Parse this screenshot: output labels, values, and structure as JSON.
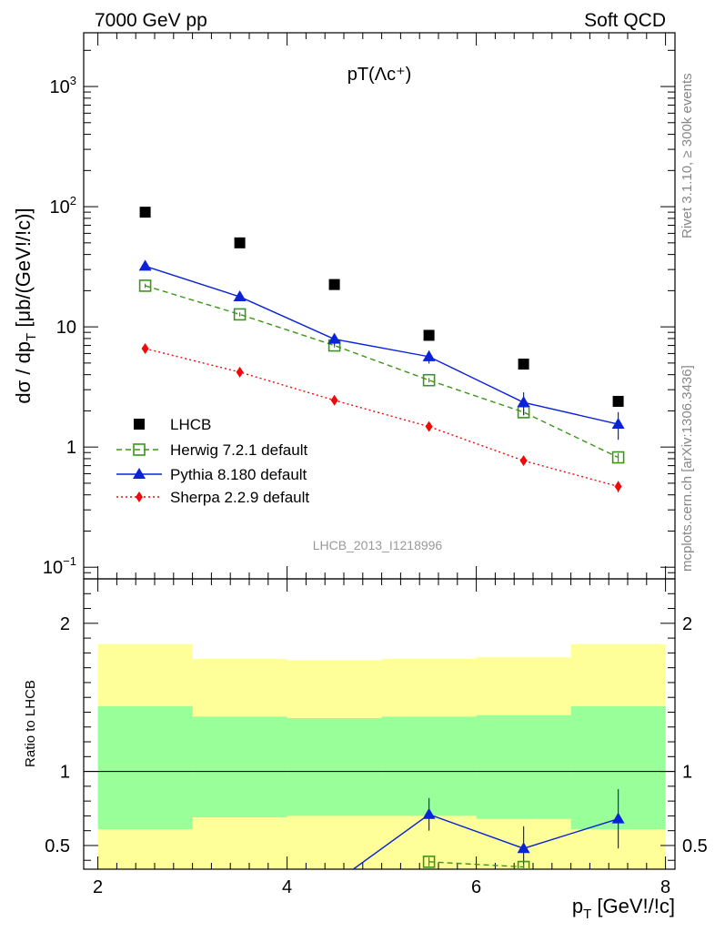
{
  "header": {
    "left": "7000 GeV pp",
    "right": "Soft QCD"
  },
  "side_labels": {
    "rivet": "Rivet 3.1.10, ≥ 300k events",
    "mcplots": "mcplots.cern.ch [arXiv:1306.3436]"
  },
  "chart_data": {
    "type": "scatter",
    "title": "pT(Λc⁺)",
    "analysis_id": "LHCB_2013_I1218996",
    "xlabel": "p_T [GeV!/!c]",
    "ylabel": "dσ / dp_T [μb/(GeV!/!c)]",
    "ratio_ylabel": "Ratio to LHCB",
    "xlim": [
      1.85,
      8.1
    ],
    "ylim": [
      0.08,
      2800
    ],
    "yscale": "log",
    "ratio_ylim": [
      0.34,
      2.3
    ],
    "xticks": [
      2,
      4,
      6,
      8
    ],
    "x": [
      2.5,
      3.5,
      4.5,
      5.5,
      6.5,
      7.5
    ],
    "bin_edges": [
      2,
      3,
      4,
      5,
      6,
      7,
      8
    ],
    "series": [
      {
        "name": "LHCB",
        "color": "#000000",
        "marker": "square-filled",
        "line": "none",
        "values": [
          90,
          50,
          22.5,
          8.5,
          4.9,
          2.4
        ]
      },
      {
        "name": "Herwig 7.2.1 default",
        "color": "#3c9618",
        "marker": "square-open",
        "line": "dashed",
        "values": [
          22,
          12.7,
          7.0,
          3.6,
          1.95,
          0.82
        ],
        "err": [
          0.9,
          0.5,
          0.3,
          0.15,
          0.12,
          0.07
        ]
      },
      {
        "name": "Pythia 8.180 default",
        "color": "#0a22d8",
        "marker": "triangle-filled",
        "line": "solid",
        "values": [
          32,
          17.8,
          7.9,
          5.65,
          2.35,
          1.55
        ],
        "err": [
          1.0,
          1.0,
          0.9,
          0.7,
          0.5,
          0.4
        ]
      },
      {
        "name": "Sherpa 2.2.9 default",
        "color": "#ef0a0a",
        "marker": "diamond-filled",
        "line": "dotted",
        "values": [
          6.6,
          4.2,
          2.45,
          1.48,
          0.77,
          0.47
        ],
        "err": [
          0.2,
          0.15,
          0.08,
          0.06,
          0.05,
          0.05
        ]
      }
    ],
    "ratio": {
      "yticks": [
        0.5,
        1,
        2
      ],
      "yellow_band": [
        {
          "lo": 0.34,
          "hi": 1.86
        },
        {
          "lo": 0.34,
          "hi": 1.76
        },
        {
          "lo": 0.34,
          "hi": 1.75
        },
        {
          "lo": 0.34,
          "hi": 1.76
        },
        {
          "lo": 0.34,
          "hi": 1.77
        },
        {
          "lo": 0.34,
          "hi": 1.86
        }
      ],
      "green_band": [
        {
          "lo": 0.61,
          "hi": 1.44
        },
        {
          "lo": 0.69,
          "hi": 1.37
        },
        {
          "lo": 0.7,
          "hi": 1.36
        },
        {
          "lo": 0.7,
          "hi": 1.37
        },
        {
          "lo": 0.68,
          "hi": 1.38
        },
        {
          "lo": 0.61,
          "hi": 1.44
        }
      ],
      "pythia": {
        "x": [
          4.7,
          5.5,
          6.5,
          7.5
        ],
        "values": [
          0.34,
          0.71,
          0.48,
          0.68
        ],
        "err": [
          0,
          0.11,
          0.15,
          0.2
        ]
      },
      "herwig": {
        "x": [
          5.5,
          6.5
        ],
        "values": [
          0.39,
          0.355
        ],
        "err": [
          0.03,
          0.02
        ]
      }
    }
  }
}
